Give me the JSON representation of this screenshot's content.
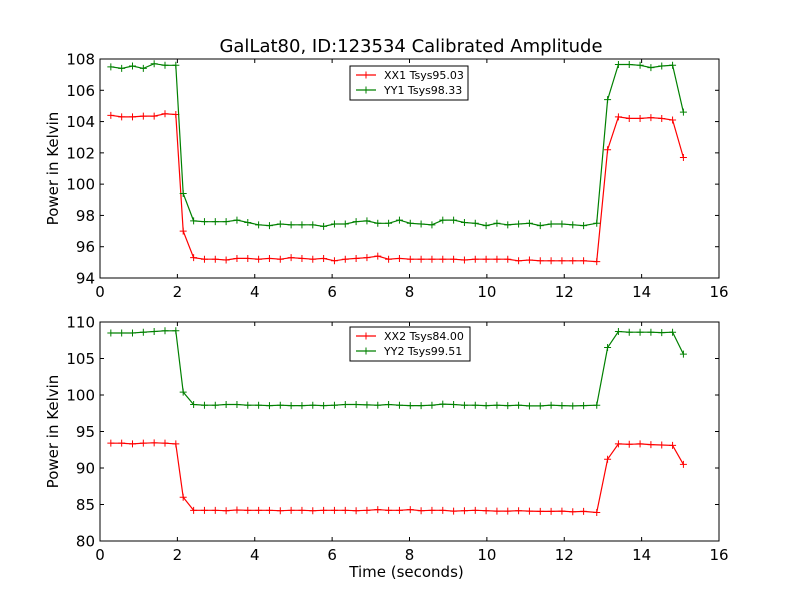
{
  "title": "GalLat80, ID:123534 Calibrated Amplitude",
  "colors": {
    "xx": "#ff0000",
    "yy": "#008000",
    "axis": "#000000"
  },
  "chart_data": [
    {
      "type": "line",
      "title": "GalLat80, ID:123534 Calibrated Amplitude",
      "xlabel": "",
      "ylabel": "Power in Kelvin",
      "xlim": [
        0,
        16
      ],
      "ylim": [
        94,
        108
      ],
      "xticks": [
        0,
        2,
        4,
        6,
        8,
        10,
        12,
        14,
        16
      ],
      "yticks": [
        94,
        96,
        98,
        100,
        102,
        104,
        106,
        108
      ],
      "grid": false,
      "legend_position": "top-center",
      "x": [
        0.28,
        0.56,
        0.84,
        1.12,
        1.4,
        1.68,
        1.96,
        2.15,
        2.42,
        2.7,
        2.98,
        3.26,
        3.54,
        3.82,
        4.1,
        4.38,
        4.66,
        4.94,
        5.22,
        5.5,
        5.78,
        6.06,
        6.34,
        6.62,
        6.9,
        7.18,
        7.46,
        7.74,
        8.02,
        8.3,
        8.58,
        8.86,
        9.14,
        9.42,
        9.7,
        9.98,
        10.26,
        10.54,
        10.82,
        11.1,
        11.38,
        11.66,
        11.94,
        12.22,
        12.5,
        12.84,
        13.12,
        13.4,
        13.68,
        13.96,
        14.24,
        14.52,
        14.8,
        15.08
      ],
      "series": [
        {
          "name": "XX1 Tsys95.03",
          "color": "#ff0000",
          "values": [
            104.4,
            104.3,
            104.3,
            104.35,
            104.35,
            104.5,
            104.45,
            97.0,
            95.3,
            95.2,
            95.2,
            95.15,
            95.25,
            95.25,
            95.2,
            95.25,
            95.2,
            95.3,
            95.25,
            95.2,
            95.25,
            95.1,
            95.2,
            95.25,
            95.3,
            95.4,
            95.2,
            95.25,
            95.2,
            95.2,
            95.2,
            95.2,
            95.2,
            95.15,
            95.2,
            95.2,
            95.2,
            95.2,
            95.1,
            95.15,
            95.1,
            95.1,
            95.1,
            95.1,
            95.1,
            95.05,
            102.2,
            104.3,
            104.2,
            104.2,
            104.25,
            104.2,
            104.1,
            101.7
          ]
        },
        {
          "name": "YY1 Tsys98.33",
          "color": "#008000",
          "values": [
            107.5,
            107.4,
            107.55,
            107.4,
            107.7,
            107.6,
            107.6,
            99.4,
            97.65,
            97.6,
            97.6,
            97.6,
            97.7,
            97.55,
            97.4,
            97.35,
            97.45,
            97.4,
            97.4,
            97.4,
            97.3,
            97.45,
            97.45,
            97.6,
            97.65,
            97.5,
            97.5,
            97.7,
            97.5,
            97.45,
            97.4,
            97.7,
            97.7,
            97.55,
            97.5,
            97.35,
            97.5,
            97.4,
            97.45,
            97.5,
            97.35,
            97.45,
            97.45,
            97.4,
            97.35,
            97.5,
            105.4,
            107.65,
            107.65,
            107.6,
            107.45,
            107.55,
            107.6,
            104.6
          ]
        }
      ]
    },
    {
      "type": "line",
      "title": "",
      "xlabel": "Time (seconds)",
      "ylabel": "Power in Kelvin",
      "xlim": [
        0,
        16
      ],
      "ylim": [
        80,
        110
      ],
      "xticks": [
        0,
        2,
        4,
        6,
        8,
        10,
        12,
        14,
        16
      ],
      "yticks": [
        80,
        85,
        90,
        95,
        100,
        105,
        110
      ],
      "grid": false,
      "legend_position": "top-center",
      "x": [
        0.28,
        0.56,
        0.84,
        1.12,
        1.4,
        1.68,
        1.96,
        2.15,
        2.42,
        2.7,
        2.98,
        3.26,
        3.54,
        3.82,
        4.1,
        4.38,
        4.66,
        4.94,
        5.22,
        5.5,
        5.78,
        6.06,
        6.34,
        6.62,
        6.9,
        7.18,
        7.46,
        7.74,
        8.02,
        8.3,
        8.58,
        8.86,
        9.14,
        9.42,
        9.7,
        9.98,
        10.26,
        10.54,
        10.82,
        11.1,
        11.38,
        11.66,
        11.94,
        12.22,
        12.5,
        12.84,
        13.12,
        13.4,
        13.68,
        13.96,
        14.24,
        14.52,
        14.8,
        15.08
      ],
      "series": [
        {
          "name": "XX2 Tsys84.00",
          "color": "#ff0000",
          "values": [
            93.4,
            93.4,
            93.3,
            93.4,
            93.45,
            93.4,
            93.3,
            86.0,
            84.2,
            84.2,
            84.2,
            84.15,
            84.25,
            84.2,
            84.2,
            84.2,
            84.15,
            84.2,
            84.2,
            84.15,
            84.2,
            84.2,
            84.2,
            84.15,
            84.2,
            84.3,
            84.2,
            84.2,
            84.3,
            84.15,
            84.2,
            84.2,
            84.1,
            84.15,
            84.2,
            84.15,
            84.1,
            84.1,
            84.15,
            84.1,
            84.05,
            84.05,
            84.1,
            84.0,
            84.05,
            83.9,
            91.2,
            93.3,
            93.25,
            93.3,
            93.2,
            93.15,
            93.1,
            90.5
          ]
        },
        {
          "name": "YY2 Tsys99.51",
          "color": "#008000",
          "values": [
            108.5,
            108.5,
            108.5,
            108.6,
            108.7,
            108.8,
            108.8,
            100.4,
            98.7,
            98.6,
            98.6,
            98.7,
            98.7,
            98.6,
            98.6,
            98.55,
            98.6,
            98.55,
            98.55,
            98.6,
            98.55,
            98.6,
            98.7,
            98.7,
            98.65,
            98.6,
            98.7,
            98.6,
            98.55,
            98.55,
            98.6,
            98.75,
            98.7,
            98.6,
            98.6,
            98.55,
            98.6,
            98.55,
            98.6,
            98.5,
            98.5,
            98.6,
            98.55,
            98.5,
            98.55,
            98.6,
            106.5,
            108.7,
            108.6,
            108.6,
            108.6,
            108.55,
            108.6,
            105.6
          ]
        }
      ]
    }
  ]
}
